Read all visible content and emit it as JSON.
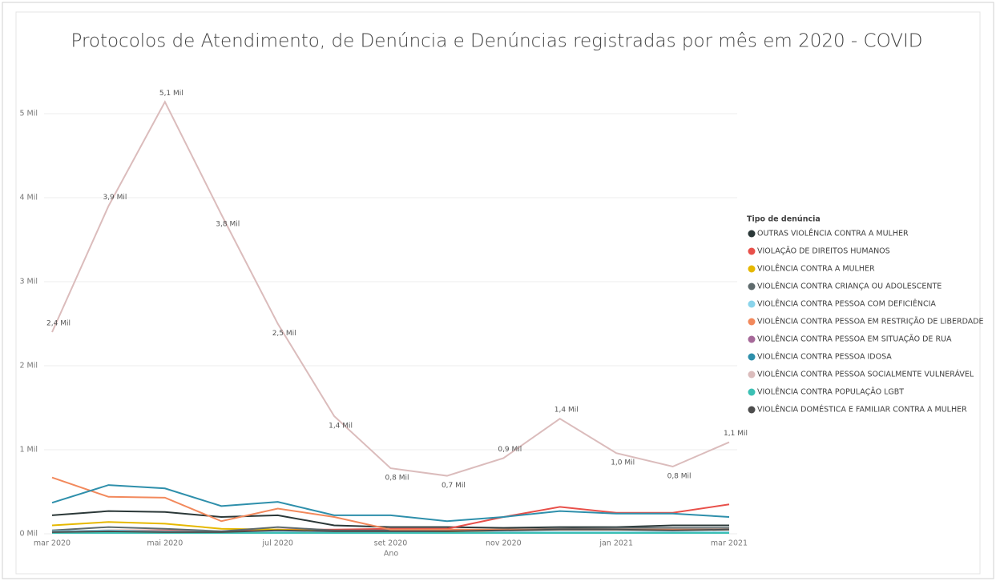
{
  "chart_data": {
    "type": "line",
    "title": "Protocolos de Atendimento, de Denúncia e Denúncias registradas por mês em 2020 - COVID",
    "x_label": "Ano",
    "legend_title": "Tipo de denúncia",
    "categories": [
      "mar 2020",
      null,
      "mai 2020",
      null,
      "jul 2020",
      null,
      "set 2020",
      null,
      "nov 2020",
      null,
      "jan 2021",
      null,
      "mar 2021"
    ],
    "ylim": [
      0,
      5.2
    ],
    "yticks": [
      {
        "value": 0,
        "label": "0 Mil"
      },
      {
        "value": 1,
        "label": "1 Mil"
      },
      {
        "value": 2,
        "label": "2 Mil"
      },
      {
        "value": 3,
        "label": "3 Mil"
      },
      {
        "value": 4,
        "label": "4 Mil"
      },
      {
        "value": 5,
        "label": "5 Mil"
      }
    ],
    "grid": true,
    "series": [
      {
        "name": "OUTRAS VIOLÊNCIA CONTRA A MULHER",
        "color": "#2b3838",
        "values": [
          0.22,
          0.27,
          0.26,
          0.2,
          0.22,
          0.1,
          0.08,
          0.08,
          0.07,
          0.08,
          0.08,
          0.1,
          0.1
        ]
      },
      {
        "name": "VIOLAÇÃO DE DIREITOS HUMANOS",
        "color": "#e8504a",
        "values": [
          0.03,
          0.04,
          0.04,
          0.03,
          0.05,
          0.05,
          0.06,
          0.06,
          0.2,
          0.32,
          0.25,
          0.25,
          0.35
        ]
      },
      {
        "name": "VIOLÊNCIA CONTRA A MULHER",
        "color": "#e6b800",
        "values": [
          0.1,
          0.14,
          0.12,
          0.06,
          0.05,
          0.03,
          0.02,
          0.02,
          0.02,
          0.02,
          0.02,
          0.02,
          0.02
        ]
      },
      {
        "name": "VIOLÊNCIA CONTRA CRIANÇA OU ADOLESCENTE",
        "color": "#5f6b6d",
        "values": [
          0.04,
          0.08,
          0.06,
          0.03,
          0.08,
          0.04,
          0.04,
          0.04,
          0.05,
          0.06,
          0.07,
          0.07,
          0.07
        ]
      },
      {
        "name": "VIOLÊNCIA CONTRA PESSOA COM DEFICIÊNCIA",
        "color": "#8ad4eb",
        "values": [
          0.03,
          0.04,
          0.03,
          0.02,
          0.02,
          0.02,
          0.02,
          0.01,
          0.02,
          0.02,
          0.02,
          0.02,
          0.02
        ]
      },
      {
        "name": "VIOLÊNCIA CONTRA PESSOA EM RESTRIÇÃO DE LIBERDADE",
        "color": "#f2895c",
        "values": [
          0.67,
          0.44,
          0.43,
          0.15,
          0.3,
          0.2,
          0.05,
          0.05,
          0.05,
          0.05,
          0.05,
          0.05,
          0.05
        ]
      },
      {
        "name": "VIOLÊNCIA CONTRA PESSOA EM SITUAÇÃO DE RUA",
        "color": "#a66999",
        "values": [
          0.01,
          0.01,
          0.01,
          0.01,
          0.01,
          0.01,
          0.01,
          0.01,
          0.01,
          0.01,
          0.01,
          0.01,
          0.01
        ]
      },
      {
        "name": "VIOLÊNCIA CONTRA PESSOA IDOSA",
        "color": "#2e8fab",
        "values": [
          0.37,
          0.58,
          0.54,
          0.33,
          0.38,
          0.22,
          0.22,
          0.15,
          0.2,
          0.27,
          0.24,
          0.24,
          0.2
        ]
      },
      {
        "name": "VIOLÊNCIA CONTRA PESSOA SOCIALMENTE VULNERÁVEL",
        "color": "#dbbcbc",
        "values": [
          2.4,
          3.9,
          5.14,
          3.8,
          2.5,
          1.4,
          0.78,
          0.69,
          0.9,
          1.37,
          0.96,
          0.8,
          1.09
        ],
        "value_labels": [
          "2,4 Mil",
          "3,9 Mil",
          "5,1 Mil",
          "3,8 Mil",
          "2,5 Mil",
          "1,4 Mil",
          "0,8 Mil",
          "0,7 Mil",
          "0,9 Mil",
          "1,4 Mil",
          "1,0 Mil",
          "0,8 Mil",
          "1,1 Mil"
        ]
      },
      {
        "name": "VIOLÊNCIA CONTRA POPULAÇÃO LGBT",
        "color": "#3cc0b4",
        "values": [
          0.01,
          0.01,
          0.01,
          0.01,
          0.01,
          0.01,
          0.01,
          0.01,
          0.01,
          0.01,
          0.01,
          0.01,
          0.01
        ]
      },
      {
        "name": "VIOLÊNCIA DOMÉSTICA E FAMILIAR CONTRA A MULHER",
        "color": "#4d4d4d",
        "values": [
          0.02,
          0.03,
          0.02,
          0.02,
          0.04,
          0.03,
          0.03,
          0.03,
          0.04,
          0.05,
          0.05,
          0.04,
          0.05
        ]
      }
    ]
  }
}
